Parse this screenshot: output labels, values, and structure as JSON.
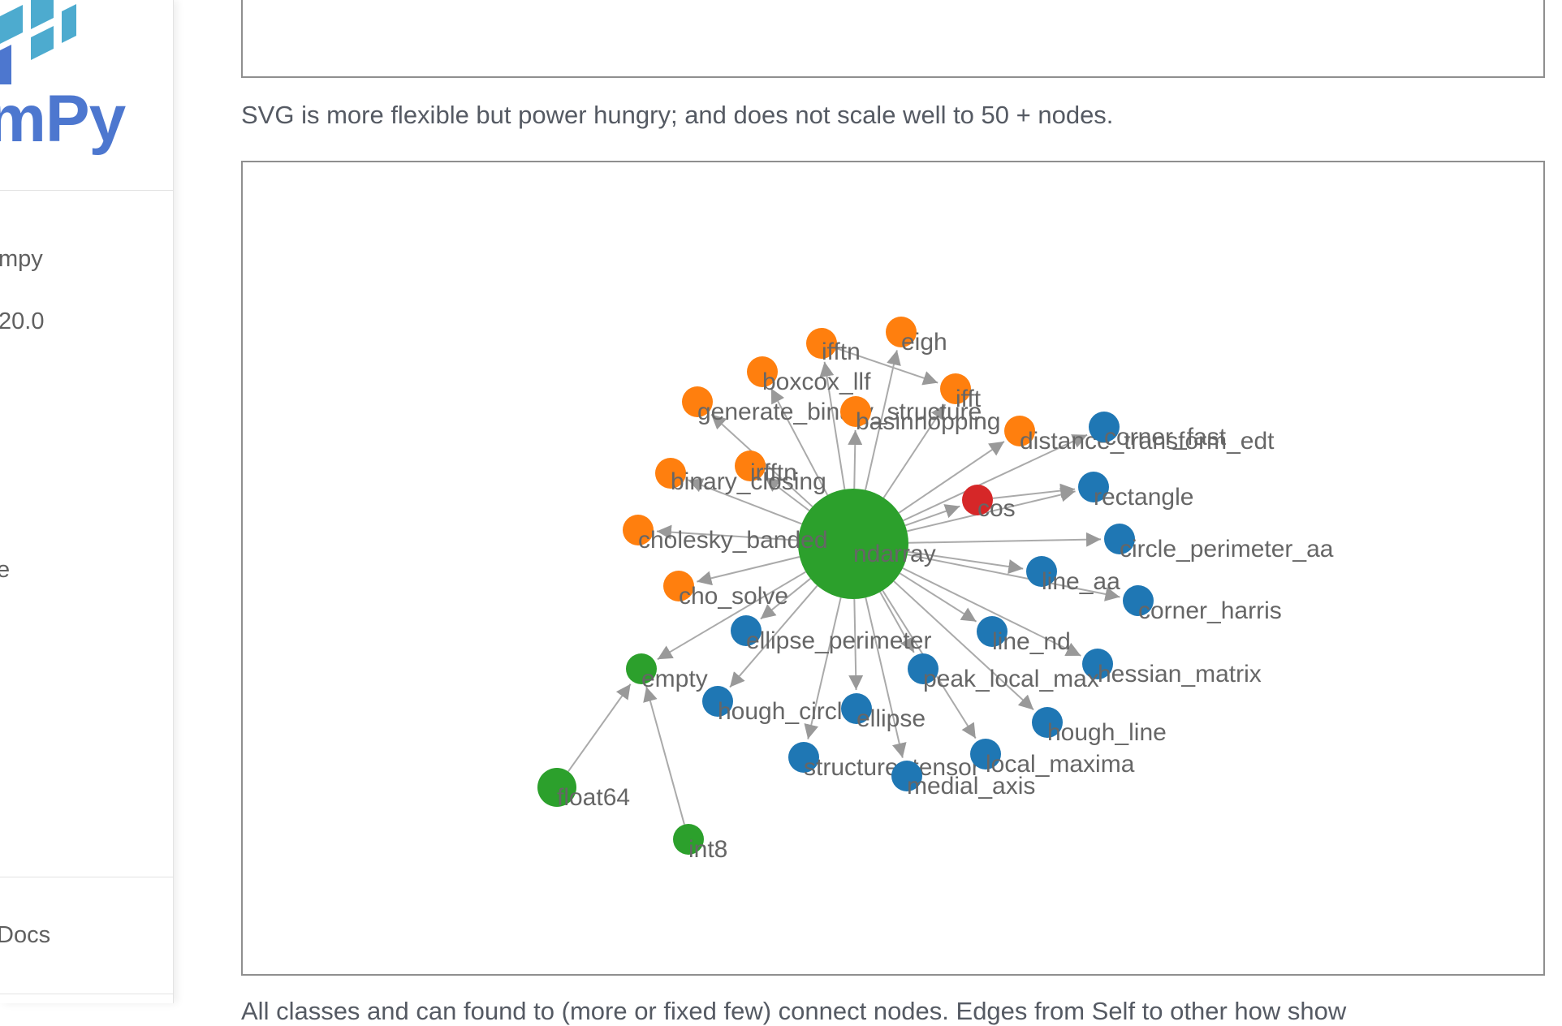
{
  "sidebar": {
    "logo": {
      "text": "mPy",
      "mark_colors": [
        "#4dabcf",
        "#4d77cf"
      ]
    },
    "items": [
      {
        "label": "mpy"
      },
      {
        "label": "20.0"
      },
      {
        "label": "e"
      },
      {
        "label": "Docs"
      }
    ]
  },
  "main": {
    "paragraph_svg": "SVG is more flexible but power hungry; and does not scale well to 50 + nodes.",
    "paragraph_bottom": "All classes and can found to (more or fixed few) connect nodes. Edges from Self to other how show",
    "colors": {
      "orange": "#ff7f0e",
      "blue": "#1f77b4",
      "green": "#2ca02c",
      "red": "#d62728",
      "edge": "#aaaaaa"
    },
    "graph": {
      "nodes": [
        {
          "id": "ndarray",
          "label": "ndarray",
          "group": "green",
          "size": "big"
        },
        {
          "id": "ifftn",
          "label": "ifftn",
          "group": "orange"
        },
        {
          "id": "eigh",
          "label": "eigh",
          "group": "orange"
        },
        {
          "id": "boxcox_llf",
          "label": "boxcox_llf",
          "group": "orange"
        },
        {
          "id": "ifft",
          "label": "ifft",
          "group": "orange"
        },
        {
          "id": "generate_binary_structure",
          "label": "generate_binary_structure",
          "group": "orange"
        },
        {
          "id": "basinhopping",
          "label": "basinhopping",
          "group": "orange"
        },
        {
          "id": "distance_transform_edt",
          "label": "distance_transform_edt",
          "group": "orange"
        },
        {
          "id": "irfftn",
          "label": "irfftn",
          "group": "orange"
        },
        {
          "id": "binary_closing",
          "label": "binary_closing",
          "group": "orange"
        },
        {
          "id": "cholesky_banded",
          "label": "cholesky_banded",
          "group": "orange"
        },
        {
          "id": "cho_solve",
          "label": "cho_solve",
          "group": "orange"
        },
        {
          "id": "cos",
          "label": "cos",
          "group": "red"
        },
        {
          "id": "corner_fast",
          "label": "corner_fast",
          "group": "blue"
        },
        {
          "id": "rectangle",
          "label": "rectangle",
          "group": "blue"
        },
        {
          "id": "circle_perimeter_aa",
          "label": "circle_perimeter_aa",
          "group": "blue"
        },
        {
          "id": "line_aa",
          "label": "line_aa",
          "group": "blue"
        },
        {
          "id": "corner_harris",
          "label": "corner_harris",
          "group": "blue"
        },
        {
          "id": "ellipse_perimeter",
          "label": "ellipse_perimeter",
          "group": "blue"
        },
        {
          "id": "line_nd",
          "label": "line_nd",
          "group": "blue"
        },
        {
          "id": "hessian_matrix",
          "label": "hessian_matrix",
          "group": "blue"
        },
        {
          "id": "peak_local_max",
          "label": "peak_local_max",
          "group": "blue"
        },
        {
          "id": "hough_circle",
          "label": "hough_circle",
          "group": "blue"
        },
        {
          "id": "ellipse",
          "label": "ellipse",
          "group": "blue"
        },
        {
          "id": "hough_line",
          "label": "hough_line",
          "group": "blue"
        },
        {
          "id": "structure_tensor",
          "label": "structure_tensor",
          "group": "blue"
        },
        {
          "id": "local_maxima",
          "label": "local_maxima",
          "group": "blue"
        },
        {
          "id": "medial_axis",
          "label": "medial_axis",
          "group": "blue"
        },
        {
          "id": "empty",
          "label": "empty",
          "group": "green"
        },
        {
          "id": "float64",
          "label": "float64",
          "group": "green"
        },
        {
          "id": "int8",
          "label": "int8",
          "group": "green"
        }
      ],
      "edges": [
        [
          "ndarray",
          "ifftn"
        ],
        [
          "ndarray",
          "eigh"
        ],
        [
          "ndarray",
          "boxcox_llf"
        ],
        [
          "ndarray",
          "ifft"
        ],
        [
          "ndarray",
          "generate_binary_structure"
        ],
        [
          "ndarray",
          "basinhopping"
        ],
        [
          "ndarray",
          "distance_transform_edt"
        ],
        [
          "ndarray",
          "irfftn"
        ],
        [
          "ndarray",
          "binary_closing"
        ],
        [
          "ndarray",
          "cholesky_banded"
        ],
        [
          "ndarray",
          "cho_solve"
        ],
        [
          "ndarray",
          "cos"
        ],
        [
          "ndarray",
          "corner_fast"
        ],
        [
          "ndarray",
          "rectangle"
        ],
        [
          "ndarray",
          "circle_perimeter_aa"
        ],
        [
          "ndarray",
          "line_aa"
        ],
        [
          "ndarray",
          "corner_harris"
        ],
        [
          "ndarray",
          "ellipse_perimeter"
        ],
        [
          "ndarray",
          "line_nd"
        ],
        [
          "ndarray",
          "hessian_matrix"
        ],
        [
          "ndarray",
          "peak_local_max"
        ],
        [
          "ndarray",
          "hough_circle"
        ],
        [
          "ndarray",
          "ellipse"
        ],
        [
          "ndarray",
          "hough_line"
        ],
        [
          "ndarray",
          "structure_tensor"
        ],
        [
          "ndarray",
          "local_maxima"
        ],
        [
          "ndarray",
          "medial_axis"
        ],
        [
          "ndarray",
          "empty"
        ],
        [
          "cos",
          "rectangle"
        ],
        [
          "ifftn",
          "ifft"
        ],
        [
          "float64",
          "empty"
        ],
        [
          "int8",
          "empty"
        ]
      ]
    }
  }
}
